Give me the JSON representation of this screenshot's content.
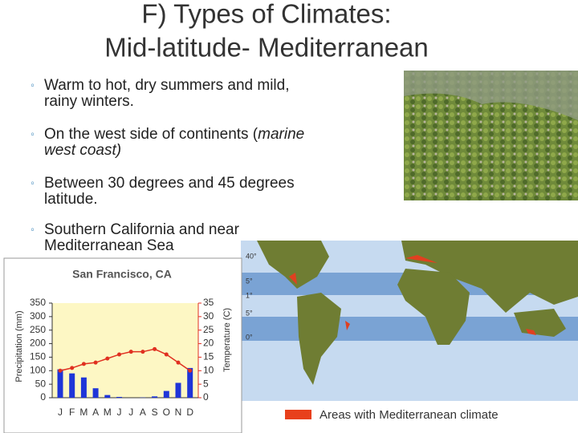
{
  "title": [
    "F) Types of Climates:",
    "Mid-latitude- Mediterranean"
  ],
  "bullets": [
    [
      [
        {
          "text": "Warm to hot, dry summers and mild,"
        }
      ],
      [
        {
          "text": "rainy winters."
        }
      ]
    ],
    [
      [
        {
          "text": "On the west side of continents ("
        },
        {
          "text": "marine",
          "italic": true
        }
      ],
      [
        {
          "text": "west coast)",
          "italic": true
        }
      ]
    ],
    [
      [
        {
          "text": "Between 30 degrees and 45 degrees"
        }
      ],
      [
        {
          "text": "latitude."
        }
      ]
    ],
    [
      [
        {
          "text": "Southern California and near"
        }
      ],
      [
        {
          "text": "Mediterranean Sea"
        }
      ]
    ]
  ],
  "map": {
    "legend": "Areas with Mediterranean climate",
    "labels": [
      "40°",
      "5°",
      "1°",
      "5°",
      "0°"
    ]
  },
  "chart_data": {
    "type": "bar",
    "title": "San Francisco, CA",
    "y_label": "Precipitation (mm)",
    "y2_label": "Temperature (C)",
    "categories": [
      "J",
      "F",
      "M",
      "A",
      "M",
      "J",
      "J",
      "A",
      "S",
      "O",
      "N",
      "D"
    ],
    "series": [
      {
        "type": "bar",
        "color": "#1f35d8",
        "values": [
          105,
          90,
          75,
          35,
          10,
          3,
          0,
          1,
          5,
          25,
          55,
          110
        ]
      },
      {
        "type": "line",
        "axis": "y2",
        "color": "#e03020",
        "values": [
          10,
          11,
          12.5,
          13,
          14.5,
          16,
          17,
          17,
          18,
          16,
          13,
          10
        ]
      }
    ],
    "ylim": [
      0,
      350
    ],
    "yticks": [
      0,
      50,
      100,
      150,
      200,
      250,
      300,
      350
    ],
    "y2lim": [
      0,
      35
    ],
    "y2ticks": [
      0,
      5,
      10,
      15,
      20,
      25,
      30,
      35
    ]
  }
}
